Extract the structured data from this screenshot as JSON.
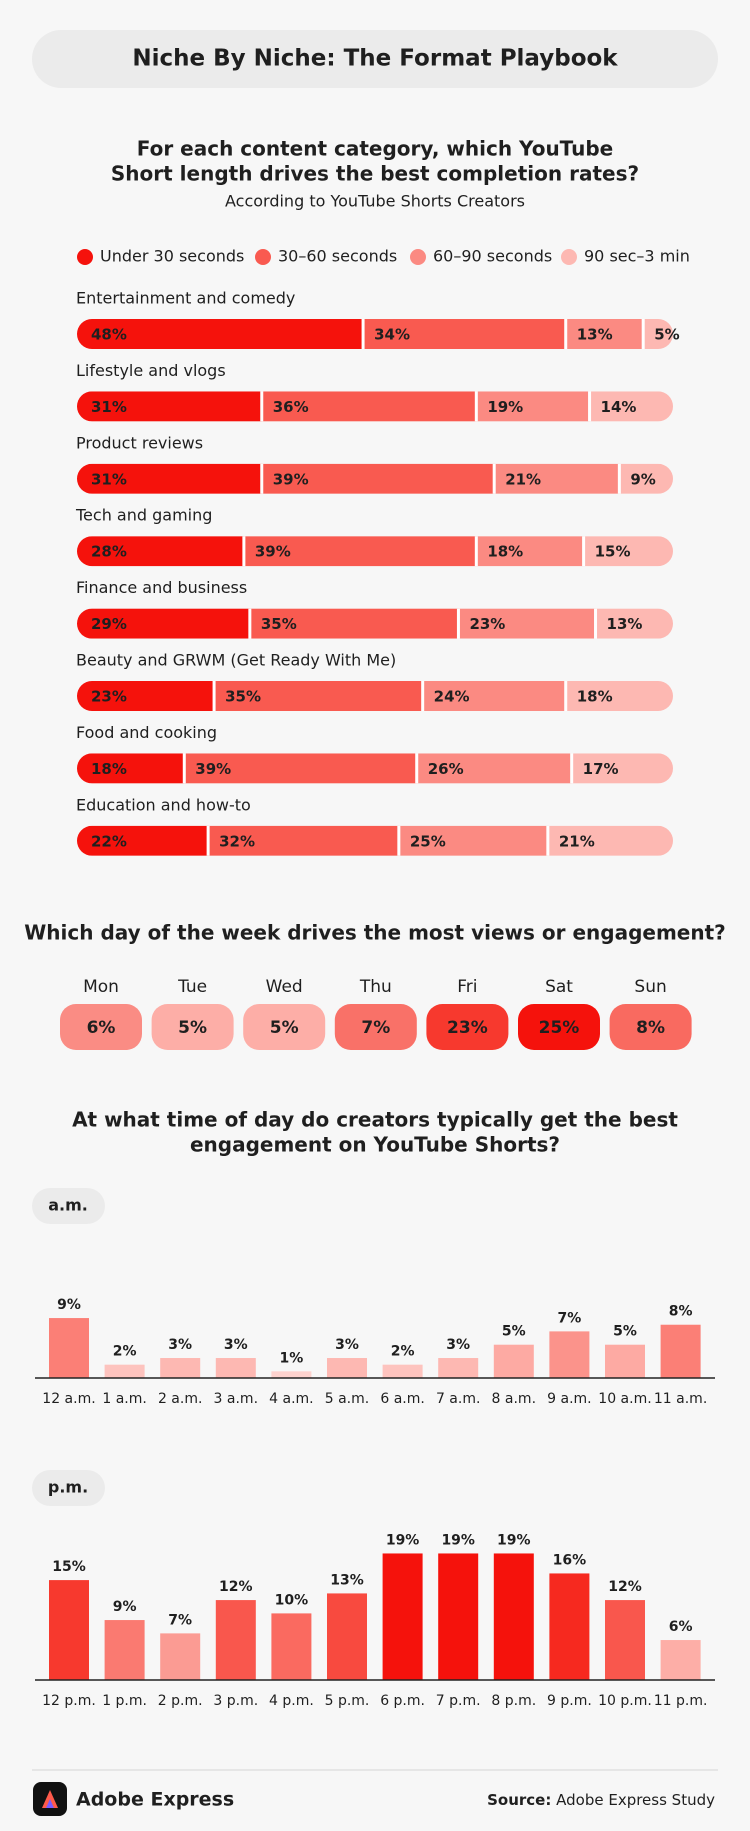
{
  "header": {
    "title": "Niche By Niche: The Format Playbook"
  },
  "chart_data": [
    {
      "type": "bar",
      "orientation": "horizontal",
      "stacked": true,
      "title": [
        "For each content category, which YouTube",
        "Short length drives the best completion rates?"
      ],
      "subtitle": "According to YouTube Shorts Creators",
      "categories": [
        "Entertainment and comedy",
        "Lifestyle and vlogs",
        "Product reviews",
        "Tech and gaming",
        "Finance and business",
        "Beauty and GRWM (Get Ready With Me)",
        "Food and cooking",
        "Education and how-to"
      ],
      "series": [
        {
          "name": "Under 30 seconds",
          "color": "#f5120c",
          "label_color": "#ffffff",
          "values": [
            48,
            31,
            31,
            28,
            29,
            23,
            18,
            22
          ],
          "value_labels": [
            "48%",
            "31%",
            "31%",
            "28%",
            "29%",
            "23%",
            "18%",
            "22%"
          ]
        },
        {
          "name": "30–60 seconds",
          "color": "#f95a50",
          "label_color": "#1f1f1f",
          "values": [
            34,
            36,
            39,
            39,
            35,
            35,
            39,
            32
          ],
          "value_labels": [
            "34%",
            "36%",
            "39%",
            "39%",
            "35%",
            "35%",
            "39%",
            "32%"
          ]
        },
        {
          "name": "60–90 seconds",
          "color": "#fb8a82",
          "label_color": "#1f1f1f",
          "values": [
            13,
            19,
            21,
            18,
            23,
            24,
            26,
            25
          ],
          "value_labels": [
            "13%",
            "19%",
            "21%",
            "18%",
            "23%",
            "24%",
            "26%",
            "25%"
          ]
        },
        {
          "name": "90 sec–3 min",
          "color": "#fdb8b2",
          "label_color": "#1f1f1f",
          "values": [
            5,
            14,
            9,
            15,
            13,
            18,
            17,
            21
          ],
          "value_labels": [
            "5%",
            "14%",
            "9%",
            "15%",
            "13%",
            "18%",
            "17%",
            "21%"
          ]
        }
      ]
    },
    {
      "type": "tiles",
      "title": "Which day of the week drives the most views or engagement?",
      "categories": [
        "Mon",
        "Tue",
        "Wed",
        "Thu",
        "Fri",
        "Sat",
        "Sun"
      ],
      "values": [
        6,
        5,
        5,
        7,
        23,
        25,
        8
      ],
      "value_labels": [
        "6%",
        "5%",
        "5%",
        "7%",
        "23%",
        "25%",
        "8%"
      ],
      "colors": [
        "#fa8c84",
        "#fdaea7",
        "#fdaea7",
        "#f97168",
        "#f7392e",
        "#f5120c",
        "#f96a60"
      ],
      "label_colors": [
        "#1f1f1f",
        "#1f1f1f",
        "#1f1f1f",
        "#1f1f1f",
        "#ffffff",
        "#ffffff",
        "#ffffff"
      ]
    },
    {
      "type": "bar",
      "title": [
        "At what time of day do creators typically get the best",
        "engagement on YouTube Shorts?"
      ],
      "panel_label": "a.m.",
      "categories": [
        "12 a.m.",
        "1 a.m.",
        "2 a.m.",
        "3 a.m.",
        "4 a.m.",
        "5 a.m.",
        "6 a.m.",
        "7 a.m.",
        "8 a.m.",
        "9 a.m.",
        "10 a.m.",
        "11 a.m."
      ],
      "values": [
        9,
        2,
        3,
        3,
        1,
        3,
        2,
        3,
        5,
        7,
        5,
        8
      ],
      "value_labels": [
        "9%",
        "2%",
        "3%",
        "3%",
        "1%",
        "3%",
        "2%",
        "3%",
        "5%",
        "7%",
        "5%",
        "8%"
      ],
      "colors": [
        "#fb7f76",
        "#fdc3be",
        "#fdb8b2",
        "#fdb8b2",
        "#fdd2ce",
        "#fdb8b2",
        "#fdc3be",
        "#fdb8b2",
        "#fdaaa3",
        "#fb938b",
        "#fdaaa3",
        "#fb7f76"
      ]
    },
    {
      "type": "bar",
      "panel_label": "p.m.",
      "categories": [
        "12 p.m.",
        "1 p.m.",
        "2 p.m.",
        "3 p.m.",
        "4 p.m.",
        "5 p.m.",
        "6 p.m.",
        "7 p.m.",
        "8 p.m.",
        "9 p.m.",
        "10 p.m.",
        "11 p.m."
      ],
      "values": [
        15,
        9,
        7,
        12,
        10,
        13,
        19,
        19,
        19,
        16,
        12,
        6
      ],
      "value_labels": [
        "15%",
        "9%",
        "7%",
        "12%",
        "10%",
        "13%",
        "19%",
        "19%",
        "19%",
        "16%",
        "12%",
        "6%"
      ],
      "colors": [
        "#f7392e",
        "#fa7a71",
        "#fb9b93",
        "#f9574d",
        "#fa6a60",
        "#f84a3f",
        "#f5120c",
        "#f5120c",
        "#f5120c",
        "#f6291f",
        "#f9574d",
        "#fdaea7"
      ]
    }
  ],
  "footer": {
    "brand": "Adobe Express",
    "source_label": "Source:",
    "source": "Adobe Express Study"
  }
}
